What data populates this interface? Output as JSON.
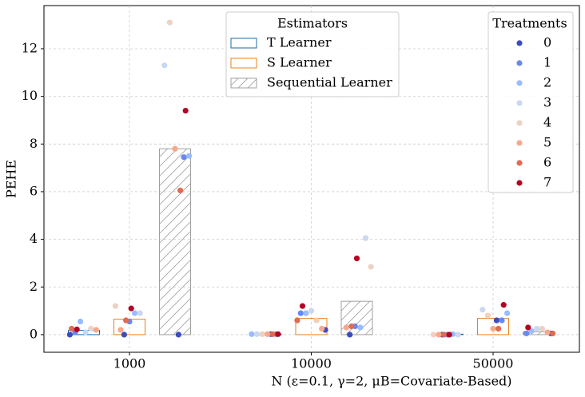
{
  "chart_data": {
    "type": "bar",
    "xlabel": "N (ε=0.1, γ=2, μB=Covariate-Based)",
    "ylabel": "PEHE",
    "categories": [
      "1000",
      "10000",
      "50000"
    ],
    "ylim": [
      -0.74,
      13.81
    ],
    "yticks": [
      0,
      2,
      4,
      6,
      8,
      10,
      12
    ],
    "grid": true,
    "legend_title": "Estimators",
    "series": [
      {
        "name": "T Learner",
        "color": "#1b6ca8",
        "values": [
          0.18,
          0.02,
          0.02
        ],
        "points": [
          [
            0.0,
            0.1,
            0.55,
            0.1,
            0.25,
            0.2,
            0.25,
            0.22
          ],
          [
            0.02,
            0.02,
            0.02,
            0.02,
            0.02,
            0.02,
            0.02,
            0.02
          ],
          [
            0.0,
            0.0,
            0.02,
            0.0,
            0.0,
            0.0,
            0.0,
            0.0
          ]
        ]
      },
      {
        "name": "S Learner",
        "color": "#e8821e",
        "values": [
          0.65,
          0.68,
          0.68
        ],
        "points": [
          [
            0.0,
            0.55,
            0.9,
            0.9,
            1.2,
            0.2,
            0.6,
            1.1
          ],
          [
            0.2,
            0.9,
            0.9,
            1.0,
            0.6,
            0.25,
            0.6,
            1.2
          ],
          [
            0.6,
            0.6,
            0.9,
            1.05,
            0.8,
            0.25,
            0.25,
            1.25
          ]
        ]
      },
      {
        "name": "Sequential Learner",
        "color": "#a0a0a0",
        "hatch": true,
        "values": [
          7.8,
          1.4,
          0.12
        ],
        "points": [
          [
            0.0,
            7.45,
            7.5,
            11.3,
            13.1,
            7.8,
            6.05,
            9.4
          ],
          [
            0.0,
            0.35,
            0.3,
            4.05,
            2.85,
            0.3,
            0.35,
            3.2
          ],
          [
            0.05,
            0.05,
            0.15,
            0.25,
            0.25,
            0.1,
            0.05,
            0.3
          ]
        ]
      }
    ],
    "treatments": {
      "title": "Treatments",
      "names": [
        "0",
        "1",
        "2",
        "3",
        "4",
        "5",
        "6",
        "7"
      ],
      "colors": [
        "#3b4cc0",
        "#6788ee",
        "#9abbff",
        "#c9d7f0",
        "#edd1c2",
        "#f7a889",
        "#e26952",
        "#b40426"
      ]
    }
  }
}
